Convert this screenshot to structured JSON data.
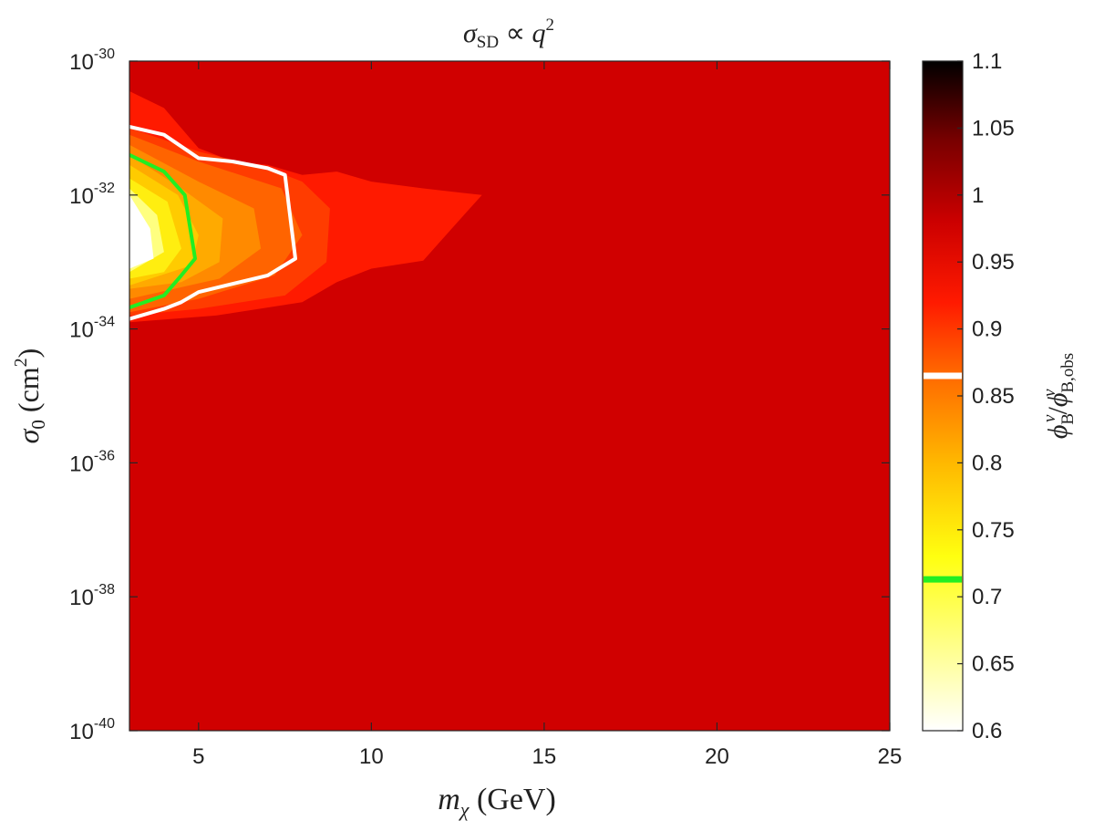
{
  "chart_data": {
    "type": "heatmap",
    "title_parts": {
      "main": "σ",
      "sub": "SD",
      "rel": " ∝ ",
      "var": "q",
      "sup": "2"
    },
    "xlabel_parts": {
      "main": "m",
      "sub": "χ",
      "unit": " (GeV)"
    },
    "ylabel_parts": {
      "main": "σ",
      "sub": "0",
      "unit_open": " (cm",
      "unit_sup": "2",
      "unit_close": ")"
    },
    "colorbar_label_parts": {
      "num": "ϕ",
      "num_sub": "B",
      "num_sup": "ν",
      "slash": "/",
      "den": "ϕ",
      "den_sub": "B,obs",
      "den_sup": "ν"
    },
    "x_ticks": [
      5,
      10,
      15,
      20,
      25
    ],
    "x_tick_labels": [
      "5",
      "10",
      "15",
      "20",
      "25"
    ],
    "xlim": [
      3,
      25
    ],
    "y_scale": "log",
    "ylim": [
      1e-40,
      1e-30
    ],
    "y_ticks": [
      -40,
      -38,
      -36,
      -34,
      -32,
      -30
    ],
    "y_tick_labels": [
      {
        "base": "10",
        "exp": "-40"
      },
      {
        "base": "10",
        "exp": "-38"
      },
      {
        "base": "10",
        "exp": "-36"
      },
      {
        "base": "10",
        "exp": "-34"
      },
      {
        "base": "10",
        "exp": "-32"
      },
      {
        "base": "10",
        "exp": "-30"
      }
    ],
    "colorbar_range": [
      0.6,
      1.1
    ],
    "colorbar_ticks": [
      "0.6",
      "0.65",
      "0.7",
      "0.75",
      "0.8",
      "0.85",
      "0.9",
      "0.95",
      "1",
      "1.05",
      "1.1"
    ],
    "colorbar_markers": [
      {
        "value": 0.865,
        "color": "#ffffff",
        "name": "white-contour"
      },
      {
        "value": 0.713,
        "color": "#22ee22",
        "name": "green-contour"
      }
    ],
    "background_value": 0.94,
    "filled_contours": [
      {
        "level": 0.92,
        "color": "#ff1a00",
        "points": [
          [
            3,
            -30.45
          ],
          [
            4,
            -30.7
          ],
          [
            5,
            -31.3
          ],
          [
            6,
            -31.5
          ],
          [
            7,
            -31.55
          ],
          [
            8,
            -31.7
          ],
          [
            9,
            -31.65
          ],
          [
            10,
            -31.8
          ],
          [
            11.5,
            -31.9
          ],
          [
            13.2,
            -32
          ],
          [
            12.5,
            -32.4
          ],
          [
            11.5,
            -32.98
          ],
          [
            10,
            -33.1
          ],
          [
            9,
            -33.3
          ],
          [
            8,
            -33.6
          ],
          [
            5.5,
            -33.8
          ],
          [
            3,
            -33.9
          ]
        ]
      },
      {
        "level": 0.88,
        "color": "#ff3c00",
        "points": [
          [
            3,
            -31.0
          ],
          [
            5,
            -31.35
          ],
          [
            7,
            -31.6
          ],
          [
            8,
            -31.8
          ],
          [
            8.8,
            -32.2
          ],
          [
            8.7,
            -33.0
          ],
          [
            7.5,
            -33.5
          ],
          [
            5,
            -33.7
          ],
          [
            3,
            -33.8
          ]
        ]
      },
      {
        "level": 0.85,
        "color": "#ff6400",
        "points": [
          [
            3,
            -31.1
          ],
          [
            5,
            -31.5
          ],
          [
            7.4,
            -31.9
          ],
          [
            8,
            -32.6
          ],
          [
            7.2,
            -33.2
          ],
          [
            5,
            -33.55
          ],
          [
            3,
            -33.75
          ]
        ]
      },
      {
        "level": 0.82,
        "color": "#ff8a00",
        "points": [
          [
            3,
            -31.25
          ],
          [
            5,
            -31.8
          ],
          [
            6.6,
            -32.2
          ],
          [
            6.8,
            -32.8
          ],
          [
            5.6,
            -33.25
          ],
          [
            3,
            -33.55
          ]
        ]
      },
      {
        "level": 0.79,
        "color": "#ffaa00",
        "points": [
          [
            3,
            -31.4
          ],
          [
            4.5,
            -31.9
          ],
          [
            5.7,
            -32.35
          ],
          [
            5.6,
            -33.0
          ],
          [
            4.5,
            -33.3
          ],
          [
            3,
            -33.4
          ]
        ]
      },
      {
        "level": 0.76,
        "color": "#ffcb00",
        "points": [
          [
            3,
            -31.55
          ],
          [
            4.4,
            -32.0
          ],
          [
            5.0,
            -32.6
          ],
          [
            4.8,
            -33.05
          ],
          [
            3,
            -33.35
          ]
        ]
      },
      {
        "level": 0.73,
        "color": "#ffee10",
        "points": [
          [
            3,
            -31.75
          ],
          [
            4.1,
            -32.1
          ],
          [
            4.5,
            -32.8
          ],
          [
            4.0,
            -33.15
          ],
          [
            3,
            -33.25
          ]
        ]
      },
      {
        "level": 0.69,
        "color": "#ffff80",
        "points": [
          [
            3,
            -31.9
          ],
          [
            3.8,
            -32.3
          ],
          [
            4.0,
            -32.85
          ],
          [
            3,
            -33.15
          ]
        ]
      },
      {
        "level": 0.64,
        "color": "#ffffff",
        "points": [
          [
            3,
            -32.0
          ],
          [
            3.6,
            -32.5
          ],
          [
            3.7,
            -32.95
          ],
          [
            3,
            -33.1
          ]
        ]
      }
    ],
    "contour_lines": [
      {
        "name": "white-contour",
        "color": "#ffffff",
        "points": [
          [
            3,
            -30.98
          ],
          [
            4,
            -31.1
          ],
          [
            5,
            -31.45
          ],
          [
            6,
            -31.5
          ],
          [
            7,
            -31.6
          ],
          [
            7.5,
            -31.7
          ],
          [
            7.8,
            -32.95
          ],
          [
            7,
            -33.2
          ],
          [
            5,
            -33.45
          ],
          [
            4.5,
            -33.6
          ],
          [
            4,
            -33.7
          ],
          [
            3,
            -33.85
          ]
        ]
      },
      {
        "name": "green-contour",
        "color": "#22ee22",
        "points": [
          [
            3,
            -31.4
          ],
          [
            4,
            -31.65
          ],
          [
            4.6,
            -32.0
          ],
          [
            4.9,
            -32.95
          ],
          [
            4.5,
            -33.2
          ],
          [
            4,
            -33.5
          ],
          [
            3,
            -33.68
          ]
        ]
      }
    ]
  }
}
